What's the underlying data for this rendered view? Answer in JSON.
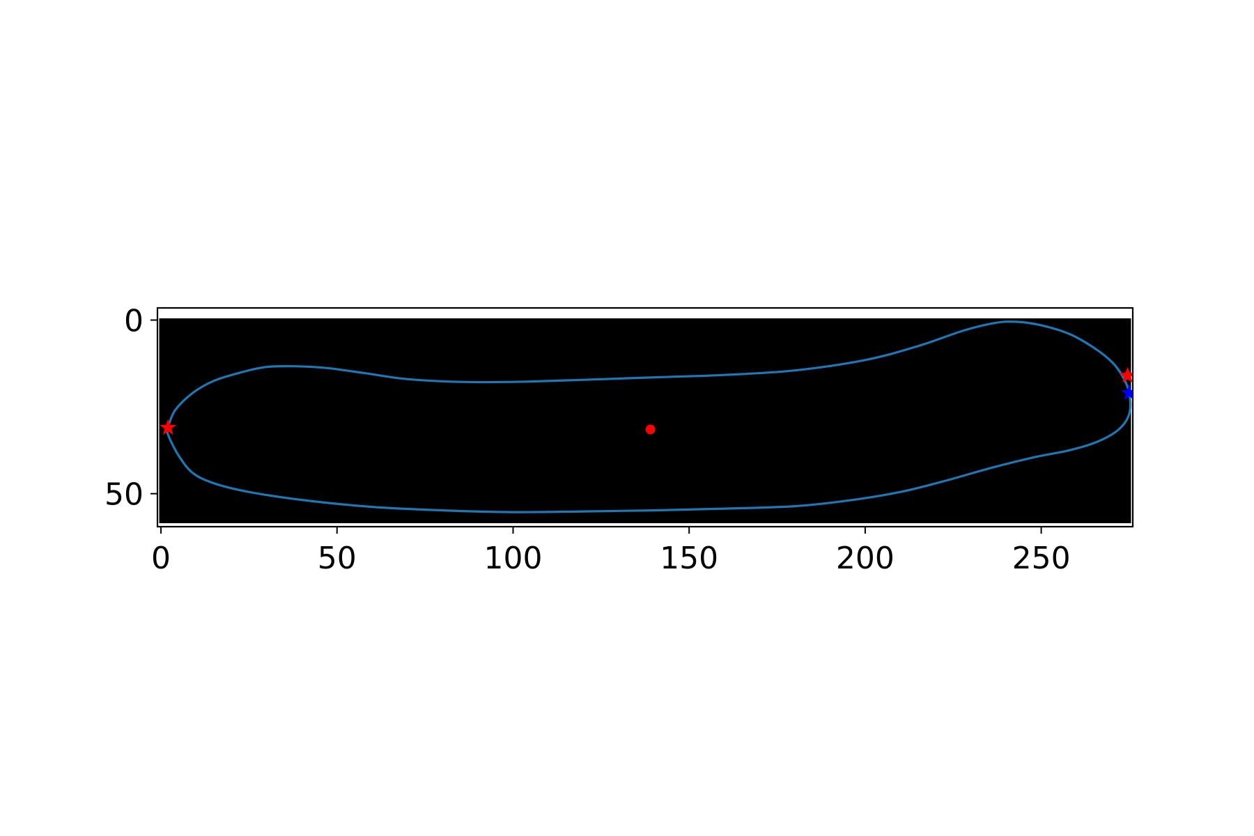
{
  "chart_data": {
    "type": "scatter",
    "title": "",
    "xlabel": "",
    "ylabel": "",
    "xlim": [
      -1,
      276
    ],
    "ylim": [
      59.5,
      -3.5
    ],
    "y_inverted": true,
    "grid": false,
    "legend": "none",
    "background_image": {
      "kind": "binary mask",
      "extent_x": [
        -0.5,
        275.5
      ],
      "extent_y": [
        -0.5,
        58.5
      ],
      "colors": {
        "foreground": "#000000",
        "background": "#ffffff"
      }
    },
    "x_ticks": [
      0,
      50,
      100,
      150,
      200,
      250
    ],
    "x_tick_labels": [
      "0",
      "50",
      "100",
      "150",
      "200",
      "250"
    ],
    "y_ticks": [
      0,
      50
    ],
    "y_tick_labels": [
      "0",
      "50"
    ],
    "series": [
      {
        "type": "line",
        "color": "#1f77b4",
        "closed": true,
        "x": [
          2,
          4,
          9,
          15,
          23,
          30,
          38,
          47,
          58,
          70,
          85,
          100,
          120,
          140,
          160,
          180,
          200,
          215,
          228,
          237,
          243,
          250,
          258,
          265,
          270,
          273,
          275,
          275,
          272,
          266,
          258,
          248,
          236,
          222,
          210,
          195,
          180,
          160,
          140,
          120,
          100,
          80,
          60,
          40,
          25,
          15,
          9,
          5,
          2
        ],
        "y": [
          31,
          26,
          21,
          17.5,
          15,
          13.5,
          13.3,
          13.8,
          15.3,
          17,
          17.8,
          17.8,
          17.2,
          16.5,
          15.8,
          14.5,
          11.5,
          7.5,
          3,
          0.8,
          0.5,
          1.5,
          4,
          8,
          12,
          16,
          21,
          27,
          31.5,
          35,
          37.5,
          39.5,
          42.5,
          46.5,
          49.5,
          52,
          53.6,
          54.3,
          54.8,
          55.1,
          55.3,
          54.8,
          53.8,
          51.8,
          49.5,
          47,
          44,
          39,
          33
        ]
      },
      {
        "type": "scatter",
        "marker": "star",
        "color": "#ff0000",
        "x": [
          2,
          274.5
        ],
        "y": [
          31,
          16
        ]
      },
      {
        "type": "scatter",
        "marker": "star",
        "color": "#0000ff",
        "x": [
          275
        ],
        "y": [
          21
        ]
      },
      {
        "type": "scatter",
        "marker": "circle",
        "color": "#ff0000",
        "x": [
          139
        ],
        "y": [
          31.5
        ]
      }
    ]
  }
}
